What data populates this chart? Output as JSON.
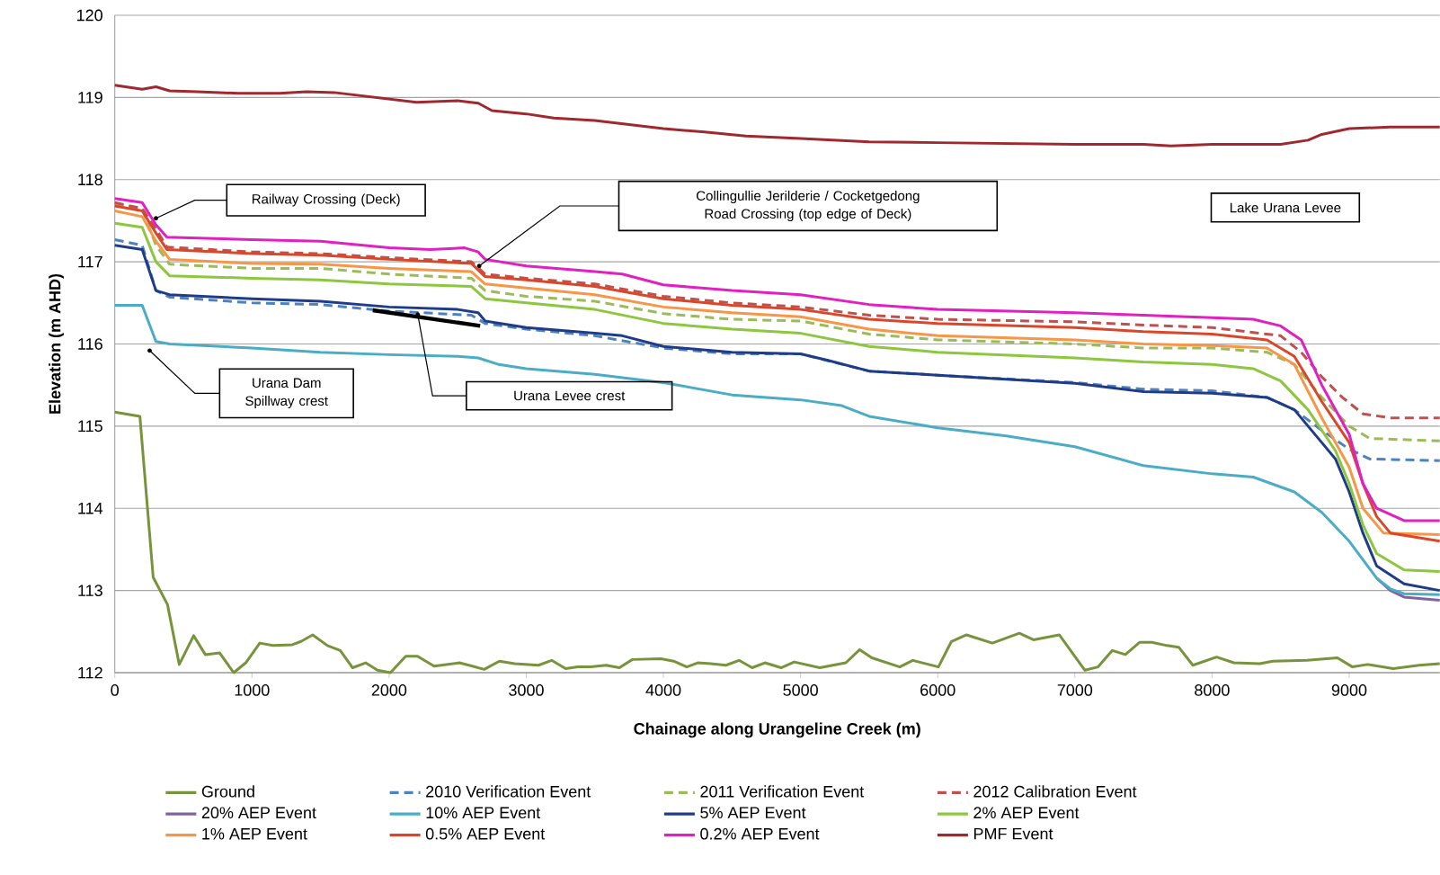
{
  "chart_data": {
    "type": "line",
    "xlabel": "Chainage along Urangeline Creek (m)",
    "ylabel": "Elevation (m AHD)",
    "xlim": [
      0,
      9660
    ],
    "ylim": [
      112,
      120
    ],
    "xticks": [
      0,
      1000,
      2000,
      3000,
      4000,
      5000,
      6000,
      7000,
      8000,
      9000
    ],
    "yticks": [
      112,
      113,
      114,
      115,
      116,
      117,
      118,
      119,
      120
    ],
    "grid": "y",
    "legend": "bottom",
    "line_style": "solid",
    "annotations": [
      "Railway Crossing (Deck)",
      "Collingullie Jerilderie / Cocketgedong Road Crossing (top edge of Deck)",
      "Lake Urana Levee",
      "Urana Dam Spillway crest",
      "Urana Levee crest"
    ],
    "series": [
      {
        "name": "Ground",
        "color": "#77933c",
        "x": [
          0,
          183,
          280,
          384,
          470,
          575,
          660,
          765,
          867,
          955,
          1057,
          1153,
          1295,
          1358,
          1443,
          1550,
          1644,
          1734,
          1829,
          1915,
          2010,
          2121,
          2207,
          2328,
          2512,
          2607,
          2693,
          2804,
          2915,
          3089,
          3185,
          3287,
          3376,
          3471,
          3583,
          3679,
          3774,
          3981,
          4075,
          4170,
          4250,
          4345,
          4456,
          4551,
          4647,
          4740,
          4858,
          4953,
          5140,
          5330,
          5431,
          5520,
          5723,
          5818,
          6005,
          6100,
          6210,
          6398,
          6595,
          6698,
          6886,
          7073,
          7169,
          7273,
          7368,
          7473,
          7561,
          7671,
          7757,
          7860,
          8033,
          8159,
          8348,
          8442,
          8691,
          8914,
          9024,
          9134,
          9321,
          9510,
          9660
        ],
        "values": [
          115.17,
          115.12,
          113.16,
          112.83,
          112.1,
          112.45,
          112.22,
          112.24,
          112.0,
          112.12,
          112.36,
          112.33,
          112.34,
          112.38,
          112.46,
          112.33,
          112.27,
          112.06,
          112.12,
          112.03,
          112.0,
          112.2,
          112.2,
          112.08,
          112.12,
          112.08,
          112.04,
          112.14,
          112.11,
          112.09,
          112.15,
          112.05,
          112.07,
          112.07,
          112.09,
          112.06,
          112.16,
          112.17,
          112.14,
          112.07,
          112.12,
          112.11,
          112.09,
          112.15,
          112.06,
          112.12,
          112.06,
          112.13,
          112.06,
          112.12,
          112.28,
          112.18,
          112.07,
          112.15,
          112.07,
          112.38,
          112.46,
          112.36,
          112.48,
          112.4,
          112.46,
          112.03,
          112.07,
          112.27,
          112.22,
          112.37,
          112.37,
          112.33,
          112.31,
          112.09,
          112.19,
          112.12,
          112.11,
          112.14,
          112.15,
          112.18,
          112.07,
          112.1,
          112.05,
          112.09,
          112.11
        ]
      },
      {
        "name": "2010 Verification Event",
        "color": "#4f81bd",
        "line_style": "dashed",
        "x": [
          0,
          200,
          300,
          400,
          1000,
          1500,
          2000,
          2600,
          2700,
          3000,
          3500,
          4000,
          4500,
          5000,
          5500,
          6000,
          7000,
          7500,
          8000,
          8400,
          8600,
          8800,
          9000,
          9150,
          9660
        ],
        "values": [
          117.27,
          117.2,
          116.65,
          116.57,
          116.5,
          116.48,
          116.4,
          116.35,
          116.25,
          116.18,
          116.1,
          115.95,
          115.88,
          115.88,
          115.67,
          115.62,
          115.53,
          115.45,
          115.43,
          115.35,
          115.2,
          114.95,
          114.72,
          114.6,
          114.58
        ]
      },
      {
        "name": "2011 Verification Event",
        "color": "#9bbb59",
        "line_style": "dashed",
        "x": [
          0,
          200,
          300,
          400,
          1000,
          1500,
          2000,
          2600,
          2700,
          3000,
          3500,
          4000,
          4500,
          5000,
          5500,
          6000,
          7000,
          7500,
          8000,
          8400,
          8600,
          8800,
          9000,
          9150,
          9660
        ],
        "values": [
          117.7,
          117.65,
          117.2,
          116.97,
          116.92,
          116.92,
          116.85,
          116.8,
          116.65,
          116.58,
          116.52,
          116.37,
          116.3,
          116.28,
          116.12,
          116.05,
          116.0,
          115.95,
          115.95,
          115.9,
          115.75,
          115.35,
          115.0,
          114.85,
          114.82
        ]
      },
      {
        "name": "2012 Calibration Event",
        "color": "#c0504d",
        "line_style": "dashed",
        "x": [
          0,
          200,
          300,
          380,
          1000,
          1500,
          2000,
          2600,
          2700,
          3000,
          3500,
          4000,
          4500,
          5000,
          5500,
          6000,
          7000,
          7500,
          8000,
          8500,
          8650,
          8800,
          8950,
          9100,
          9300,
          9660
        ],
        "values": [
          117.72,
          117.65,
          117.4,
          117.18,
          117.12,
          117.1,
          117.05,
          117.0,
          116.85,
          116.8,
          116.73,
          116.58,
          116.5,
          116.45,
          116.35,
          116.3,
          116.27,
          116.23,
          116.2,
          116.1,
          115.9,
          115.6,
          115.35,
          115.15,
          115.1,
          115.1
        ]
      },
      {
        "name": "20% AEP Event",
        "color": "#8064a2",
        "x": [
          9200,
          9300,
          9400,
          9660
        ],
        "values": [
          113.15,
          113.0,
          112.92,
          112.88
        ]
      },
      {
        "name": "10% AEP Event",
        "color": "#4bacc6",
        "x": [
          0,
          200,
          300,
          400,
          1000,
          1500,
          2000,
          2500,
          2650,
          2800,
          3000,
          3500,
          4000,
          4500,
          5000,
          5300,
          5500,
          6000,
          6500,
          7000,
          7500,
          8000,
          8300,
          8600,
          8800,
          9000,
          9200,
          9300,
          9400,
          9660
        ],
        "values": [
          116.47,
          116.47,
          116.03,
          116.0,
          115.95,
          115.9,
          115.87,
          115.85,
          115.83,
          115.75,
          115.7,
          115.63,
          115.53,
          115.38,
          115.32,
          115.25,
          115.12,
          114.98,
          114.88,
          114.75,
          114.52,
          114.42,
          114.38,
          114.2,
          113.95,
          113.6,
          113.15,
          113.02,
          112.96,
          112.95
        ]
      },
      {
        "name": "5% AEP Event",
        "color": "#1f3c88",
        "x": [
          0,
          200,
          300,
          400,
          1000,
          1500,
          2000,
          2500,
          2650,
          2700,
          3000,
          3500,
          3700,
          4000,
          4500,
          5000,
          5200,
          5500,
          6000,
          6500,
          7000,
          7500,
          8000,
          8400,
          8600,
          8800,
          8900,
          9000,
          9100,
          9200,
          9400,
          9660
        ],
        "values": [
          117.2,
          117.15,
          116.65,
          116.6,
          116.55,
          116.52,
          116.45,
          116.42,
          116.38,
          116.28,
          116.2,
          116.13,
          116.1,
          115.97,
          115.9,
          115.88,
          115.8,
          115.67,
          115.62,
          115.57,
          115.52,
          115.42,
          115.4,
          115.35,
          115.2,
          114.8,
          114.6,
          114.2,
          113.7,
          113.3,
          113.08,
          113.0
        ]
      },
      {
        "name": "2% AEP Event",
        "color": "#8dc63f",
        "x": [
          0,
          200,
          300,
          400,
          1000,
          1500,
          2000,
          2600,
          2700,
          3000,
          3500,
          4000,
          4500,
          5000,
          5500,
          6000,
          7000,
          7500,
          8000,
          8300,
          8500,
          8700,
          8900,
          9000,
          9100,
          9200,
          9400,
          9660
        ],
        "values": [
          117.47,
          117.42,
          117.0,
          116.83,
          116.8,
          116.78,
          116.73,
          116.7,
          116.55,
          116.5,
          116.42,
          116.25,
          116.18,
          116.13,
          115.97,
          115.9,
          115.83,
          115.78,
          115.75,
          115.7,
          115.55,
          115.2,
          114.7,
          114.3,
          113.8,
          113.45,
          113.25,
          113.23
        ]
      },
      {
        "name": "1% AEP Event",
        "color": "#f79646",
        "x": [
          0,
          200,
          300,
          400,
          1000,
          1500,
          2000,
          2600,
          2700,
          3000,
          3500,
          4000,
          4500,
          5000,
          5500,
          6000,
          7000,
          7500,
          8000,
          8400,
          8600,
          8800,
          9000,
          9100,
          9250,
          9660
        ],
        "values": [
          117.62,
          117.55,
          117.25,
          117.03,
          116.98,
          116.97,
          116.92,
          116.88,
          116.73,
          116.68,
          116.6,
          116.45,
          116.38,
          116.33,
          116.18,
          116.1,
          116.05,
          116.0,
          115.98,
          115.95,
          115.75,
          115.1,
          114.5,
          114.0,
          113.7,
          113.68
        ]
      },
      {
        "name": "0.5% AEP Event",
        "color": "#d9472b",
        "x": [
          0,
          200,
          300,
          380,
          1000,
          1500,
          2000,
          2600,
          2700,
          3000,
          3500,
          4000,
          4500,
          5000,
          5500,
          6000,
          7000,
          7500,
          8000,
          8400,
          8600,
          8800,
          9000,
          9100,
          9200,
          9300,
          9660
        ],
        "values": [
          117.68,
          117.62,
          117.35,
          117.15,
          117.1,
          117.08,
          117.03,
          116.98,
          116.82,
          116.78,
          116.7,
          116.55,
          116.47,
          116.42,
          116.3,
          116.25,
          116.2,
          116.15,
          116.12,
          116.05,
          115.85,
          115.3,
          114.8,
          114.3,
          113.9,
          113.7,
          113.6
        ]
      },
      {
        "name": "0.2% AEP Event",
        "color": "#e020c0",
        "x": [
          0,
          200,
          300,
          380,
          1000,
          1500,
          2000,
          2300,
          2550,
          2650,
          2700,
          3000,
          3500,
          3700,
          4000,
          4500,
          5000,
          5500,
          6000,
          6500,
          7000,
          7500,
          8000,
          8300,
          8500,
          8650,
          8800,
          9000,
          9100,
          9200,
          9400,
          9660
        ],
        "values": [
          117.77,
          117.72,
          117.45,
          117.3,
          117.27,
          117.25,
          117.17,
          117.15,
          117.17,
          117.12,
          117.03,
          116.95,
          116.88,
          116.85,
          116.72,
          116.65,
          116.6,
          116.48,
          116.42,
          116.4,
          116.38,
          116.35,
          116.32,
          116.3,
          116.22,
          116.05,
          115.5,
          114.9,
          114.3,
          114.0,
          113.85,
          113.85
        ]
      },
      {
        "name": "PMF Event",
        "color": "#9e2a2f",
        "x": [
          0,
          200,
          300,
          400,
          600,
          900,
          1200,
          1400,
          1600,
          1800,
          2000,
          2200,
          2500,
          2650,
          2750,
          3000,
          3200,
          3500,
          4000,
          4300,
          4600,
          5000,
          5500,
          6000,
          6500,
          7000,
          7500,
          7700,
          8000,
          8500,
          8700,
          8800,
          9000,
          9300,
          9660
        ],
        "values": [
          119.15,
          119.1,
          119.13,
          119.08,
          119.07,
          119.05,
          119.05,
          119.07,
          119.06,
          119.02,
          118.98,
          118.94,
          118.96,
          118.93,
          118.84,
          118.8,
          118.75,
          118.72,
          118.62,
          118.58,
          118.53,
          118.5,
          118.46,
          118.45,
          118.44,
          118.43,
          118.43,
          118.41,
          118.43,
          118.43,
          118.48,
          118.55,
          118.62,
          118.64,
          118.64
        ]
      },
      {
        "color": "#000000",
        "x": [
          1881,
          2664
        ],
        "values": [
          116.41,
          116.22
        ]
      }
    ]
  }
}
